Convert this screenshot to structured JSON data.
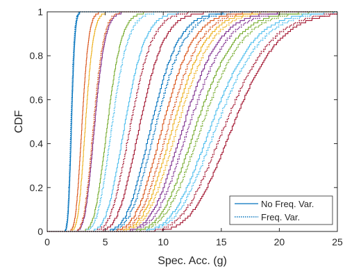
{
  "chart_data": {
    "type": "line",
    "xlabel": "Spec. Acc. (g)",
    "ylabel": "CDF",
    "xlim": [
      0,
      25
    ],
    "ylim": [
      0,
      1
    ],
    "xticks": [
      0,
      5,
      10,
      15,
      20,
      25
    ],
    "yticks": [
      0,
      0.2,
      0.4,
      0.6,
      0.8,
      1
    ],
    "xtick_labels": [
      "0",
      "5",
      "10",
      "15",
      "20",
      "25"
    ],
    "ytick_labels": [
      "0",
      "0.2",
      "0.4",
      "0.6",
      "0.8",
      "1"
    ],
    "grid": false,
    "legend": {
      "position": "bottom-right",
      "entries": [
        {
          "label": "No Freq. Var.",
          "style": "solid"
        },
        {
          "label": "Freq. Var.",
          "style": "dotted"
        }
      ]
    },
    "colors": [
      "#0072BD",
      "#D95319",
      "#EDB120",
      "#7E2F8E",
      "#77AC30",
      "#4DBEEE",
      "#A2142F"
    ],
    "curves": [
      {
        "color": "#0072BD",
        "style": "solid",
        "median": 2.1,
        "spread": 0.11
      },
      {
        "color": "#0072BD",
        "style": "dotted",
        "median": 2.05,
        "spread": 0.11
      },
      {
        "color": "#D95319",
        "style": "solid",
        "median": 3.0,
        "spread": 0.15
      },
      {
        "color": "#EDB120",
        "style": "solid",
        "median": 3.3,
        "spread": 0.16
      },
      {
        "color": "#7E2F8E",
        "style": "solid",
        "median": 4.1,
        "spread": 0.17
      },
      {
        "color": "#D95319",
        "style": "dotted",
        "median": 4.0,
        "spread": 0.17
      },
      {
        "color": "#77AC30",
        "style": "solid",
        "median": 5.2,
        "spread": 0.18
      },
      {
        "color": "#4DBEEE",
        "style": "dotted",
        "median": 5.6,
        "spread": 0.19
      },
      {
        "color": "#4DBEEE",
        "style": "solid",
        "median": 6.7,
        "spread": 0.2
      },
      {
        "color": "#A2142F",
        "style": "dotted",
        "median": 7.2,
        "spread": 0.2
      },
      {
        "color": "#A2142F",
        "style": "solid",
        "median": 8.0,
        "spread": 0.2
      },
      {
        "color": "#0072BD",
        "style": "solid",
        "median": 9.0,
        "spread": 0.2
      },
      {
        "color": "#0072BD",
        "style": "dotted",
        "median": 9.4,
        "spread": 0.2
      },
      {
        "color": "#D95319",
        "style": "solid",
        "median": 10.0,
        "spread": 0.2
      },
      {
        "color": "#D95319",
        "style": "dotted",
        "median": 10.5,
        "spread": 0.2
      },
      {
        "color": "#EDB120",
        "style": "solid",
        "median": 10.9,
        "spread": 0.2
      },
      {
        "color": "#EDB120",
        "style": "dotted",
        "median": 11.3,
        "spread": 0.2
      },
      {
        "color": "#7E2F8E",
        "style": "solid",
        "median": 11.8,
        "spread": 0.2
      },
      {
        "color": "#7E2F8E",
        "style": "dotted",
        "median": 12.3,
        "spread": 0.2
      },
      {
        "color": "#77AC30",
        "style": "solid",
        "median": 12.9,
        "spread": 0.2
      },
      {
        "color": "#77AC30",
        "style": "dotted",
        "median": 13.4,
        "spread": 0.2
      },
      {
        "color": "#4DBEEE",
        "style": "solid",
        "median": 14.2,
        "spread": 0.2
      },
      {
        "color": "#4DBEEE",
        "style": "dotted",
        "median": 14.7,
        "spread": 0.2
      },
      {
        "color": "#A2142F",
        "style": "dotted",
        "median": 15.4,
        "spread": 0.2
      },
      {
        "color": "#A2142F",
        "style": "solid",
        "median": 16.1,
        "spread": 0.19
      }
    ]
  }
}
